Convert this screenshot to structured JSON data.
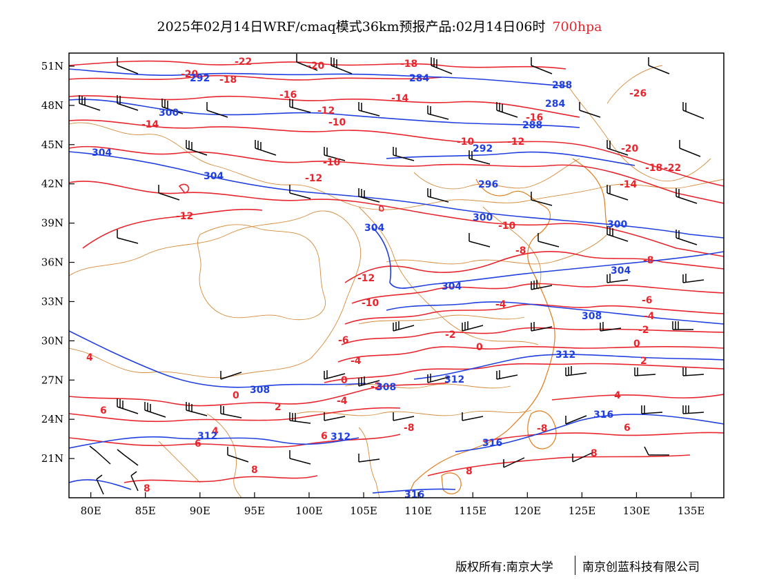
{
  "title": {
    "text": "2025年02月14日WRF/cmaq模式36km预报产品:02月14日06时",
    "level": "700hpa"
  },
  "footer": {
    "left": "版权所有:南京大学",
    "right": "南京创蓝科技有限公司"
  },
  "map": {
    "lon_range": [
      78,
      138
    ],
    "lat_range": [
      18,
      52
    ],
    "lon_ticks": [
      "80E",
      "85E",
      "90E",
      "95E",
      "100E",
      "105E",
      "110E",
      "115E",
      "120E",
      "125E",
      "130E",
      "135E"
    ],
    "lat_ticks": [
      "51N",
      "48N",
      "45N",
      "42N",
      "39N",
      "36N",
      "33N",
      "30N",
      "27N",
      "24N",
      "21N"
    ],
    "colors": {
      "temperature_contour": "#e8242c",
      "height_contour": "#1f3fe0",
      "boundary": "#d58a3a",
      "coastline": "#e07b1a",
      "wind_barb": "#000000"
    },
    "temperature_labels": [
      "-22",
      "-20",
      "-18",
      "-16",
      "-14",
      "-12",
      "-10",
      "-8",
      "-6",
      "-4",
      "-2",
      "0",
      "2",
      "4",
      "6",
      "8",
      "-26"
    ],
    "height_labels": [
      "284",
      "288",
      "292",
      "296",
      "300",
      "304",
      "308",
      "312",
      "316"
    ]
  }
}
